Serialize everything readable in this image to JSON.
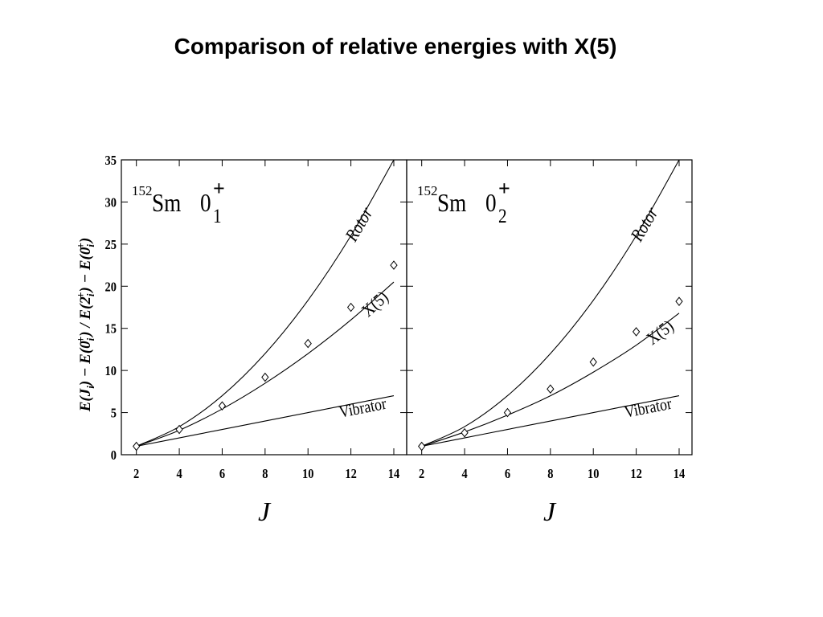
{
  "slide": {
    "title": "Comparison of relative energies with X(5)"
  },
  "chart_data": [
    {
      "type": "line",
      "panel_label": {
        "mass": "152",
        "element": "Sm",
        "state": "0",
        "subscript": "1",
        "superscript": "+"
      },
      "ylabel_parts": [
        "E(",
        "J",
        "i",
        ") − E(0",
        "i",
        "+",
        ") / E(2",
        "i",
        "+",
        ") − E(0",
        "i",
        "+",
        ")"
      ],
      "xlabel": "J",
      "xlim": [
        1.3,
        14.6
      ],
      "ylim": [
        0,
        35
      ],
      "x_ticks": [
        2,
        4,
        6,
        8,
        10,
        12,
        14
      ],
      "y_ticks": [
        0,
        5,
        10,
        15,
        20,
        25,
        30,
        35
      ],
      "series": [
        {
          "name": "Rotor",
          "style": "line",
          "x": [
            2,
            4,
            6,
            8,
            10,
            12,
            14
          ],
          "values": [
            1,
            3.33,
            7,
            12,
            18.33,
            26,
            35
          ]
        },
        {
          "name": "X(5)",
          "style": "line",
          "x": [
            2,
            4,
            6,
            8,
            10,
            12,
            14
          ],
          "values": [
            1,
            2.9,
            5.43,
            8.48,
            12.0,
            16.0,
            20.5
          ]
        },
        {
          "name": "Vibrator",
          "style": "line",
          "x": [
            2,
            4,
            6,
            8,
            10,
            12,
            14
          ],
          "values": [
            1,
            2,
            3,
            4,
            5,
            6,
            7
          ]
        },
        {
          "name": "",
          "style": "diamond",
          "x": [
            2,
            4,
            6,
            8,
            10,
            12,
            14
          ],
          "values": [
            1.0,
            3.0,
            5.8,
            9.2,
            13.2,
            17.5,
            22.5
          ]
        }
      ]
    },
    {
      "type": "line",
      "panel_label": {
        "mass": "152",
        "element": "Sm",
        "state": "0",
        "subscript": "2",
        "superscript": "+"
      },
      "xlabel": "J",
      "xlim": [
        1.3,
        14.6
      ],
      "ylim": [
        0,
        35
      ],
      "x_ticks": [
        2,
        4,
        6,
        8,
        10,
        12,
        14
      ],
      "y_ticks": [
        0,
        5,
        10,
        15,
        20,
        25,
        30,
        35
      ],
      "series": [
        {
          "name": "Rotor",
          "style": "line",
          "x": [
            2,
            4,
            6,
            8,
            10,
            12,
            14
          ],
          "values": [
            1,
            3.33,
            7,
            12,
            18.33,
            26,
            35
          ]
        },
        {
          "name": "X(5)",
          "style": "line",
          "x": [
            2,
            4,
            6,
            8,
            10,
            12,
            14
          ],
          "values": [
            1,
            2.7,
            4.7,
            7.0,
            9.8,
            13.0,
            16.8
          ]
        },
        {
          "name": "Vibrator",
          "style": "line",
          "x": [
            2,
            4,
            6,
            8,
            10,
            12,
            14
          ],
          "values": [
            1,
            2,
            3,
            4,
            5,
            6,
            7
          ]
        },
        {
          "name": "",
          "style": "diamond",
          "x": [
            2,
            4,
            6,
            8,
            10,
            12,
            14
          ],
          "values": [
            1.0,
            2.6,
            5.0,
            7.8,
            11.0,
            14.6,
            18.2
          ]
        }
      ]
    }
  ]
}
